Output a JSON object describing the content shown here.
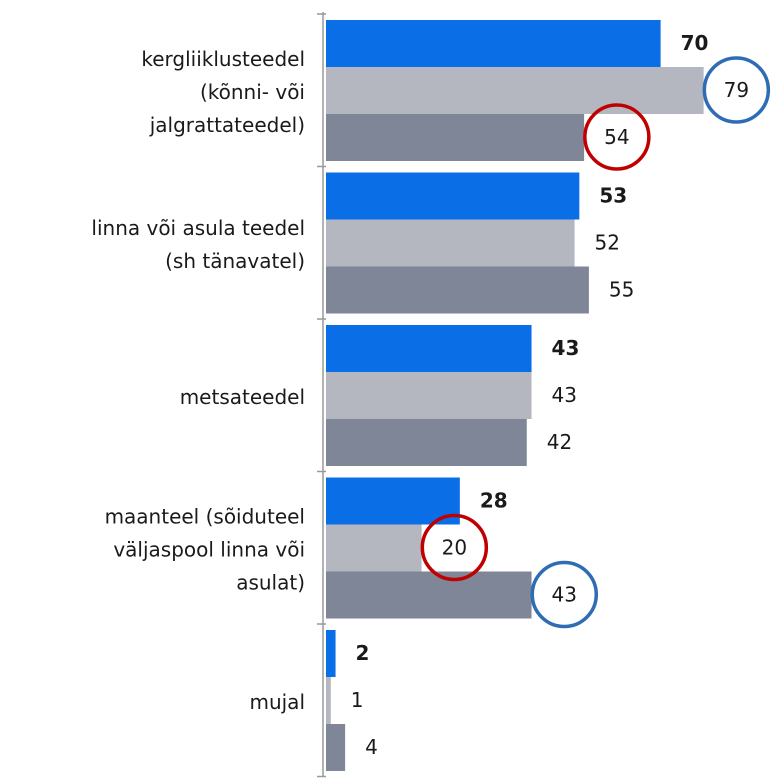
{
  "chart_data": {
    "type": "bar",
    "orientation": "horizontal",
    "categories": [
      [
        "kergliiklusteedel",
        "(kõnni- või",
        "jalgrattateedel)"
      ],
      [
        "linna või asula teedel",
        "(sh tänavatel)"
      ],
      [
        "metsateedel"
      ],
      [
        "maanteel (sõiduteel",
        "väljaspool linna või",
        "asulat)"
      ],
      [
        "mujal"
      ]
    ],
    "series": [
      {
        "color": "#0a6ee6",
        "label_color": "#0d1f4d",
        "bold_labels": true,
        "values": [
          70,
          53,
          43,
          28,
          2
        ]
      },
      {
        "color": "#b4b7bf",
        "label_color": "#1a1a1a",
        "bold_labels": false,
        "values": [
          79,
          52,
          43,
          20,
          1
        ]
      },
      {
        "color": "#7f8698",
        "label_color": "#1a1a1a",
        "bold_labels": false,
        "values": [
          54,
          55,
          42,
          43,
          4
        ]
      }
    ],
    "highlights": [
      {
        "series": 1,
        "index": 0,
        "color": "#2e6db4"
      },
      {
        "series": 2,
        "index": 0,
        "color": "#c00000"
      },
      {
        "series": 1,
        "index": 3,
        "color": "#c00000"
      },
      {
        "series": 2,
        "index": 3,
        "color": "#2e6db4"
      }
    ]
  }
}
